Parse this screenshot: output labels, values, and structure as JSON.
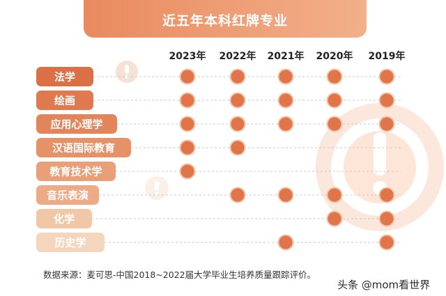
{
  "title": "近五年本科红牌专业",
  "source_note": "数据来源：麦可思-中国2018~2022届大学毕业生培养质量跟踪评价。",
  "watermark": "头条 @mom看世界",
  "colors": {
    "dot": "#e07549",
    "dot_edge": "#f3c3a8",
    "row_line": "#c9c9c9"
  },
  "chart_data": {
    "type": "table",
    "title": "近五年本科红牌专业",
    "years": [
      "2023年",
      "2022年",
      "2021年",
      "2020年",
      "2019年"
    ],
    "majors": [
      {
        "name": "法学",
        "color": "#db6f45",
        "flags": [
          1,
          1,
          1,
          1,
          1
        ]
      },
      {
        "name": "绘画",
        "color": "#df7a50",
        "flags": [
          1,
          1,
          1,
          1,
          1
        ]
      },
      {
        "name": "应用心理学",
        "color": "#e2855b",
        "flags": [
          1,
          1,
          1,
          1,
          1
        ]
      },
      {
        "name": "汉语国际教育",
        "color": "#e59268",
        "flags": [
          1,
          1,
          0,
          0,
          0
        ]
      },
      {
        "name": "教育技术学",
        "color": "#e9a079",
        "flags": [
          1,
          0,
          0,
          0,
          0
        ]
      },
      {
        "name": "音乐表演",
        "color": "#ecab86",
        "flags": [
          0,
          1,
          1,
          1,
          1
        ]
      },
      {
        "name": "化学",
        "color": "#f0c8a8",
        "flags": [
          0,
          0,
          0,
          1,
          1
        ]
      },
      {
        "name": "历史学",
        "color": "#f3d6bb",
        "flags": [
          0,
          0,
          1,
          0,
          1
        ]
      }
    ]
  }
}
